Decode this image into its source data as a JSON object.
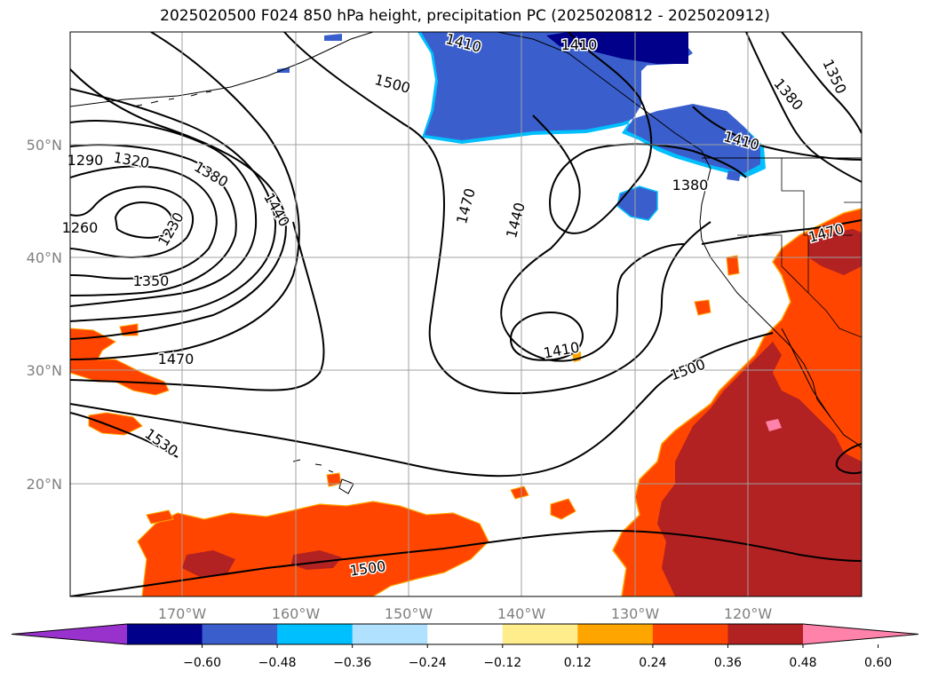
{
  "title": "2025020500 F024 850 hPa height, precipitation PC (2025020812 - 2025020912)",
  "lat_labels": [
    "50°N",
    "40°N",
    "30°N",
    "20°N"
  ],
  "lon_labels": [
    "170°W",
    "160°W",
    "150°W",
    "140°W",
    "130°W",
    "120°W"
  ],
  "contour_labels": [
    "1410",
    "1500",
    "1410",
    "1350",
    "1380",
    "1410",
    "1290",
    "1320",
    "1380",
    "1440",
    "1470",
    "1440",
    "1260",
    "1230",
    "1350",
    "1470",
    "1410",
    "1500",
    "1530",
    "1500",
    "1380",
    "1470"
  ],
  "colorbar": {
    "ticks": [
      "−0.60",
      "−0.48",
      "−0.36",
      "−0.24",
      "−0.12",
      "0.12",
      "0.24",
      "0.36",
      "0.48",
      "0.60"
    ],
    "colors": [
      "#9932cc",
      "#00008b",
      "#3a5fcd",
      "#00bfff",
      "#b0e2ff",
      "#ffffff",
      "#ffec8b",
      "#ffa500",
      "#ff4500",
      "#b22222",
      "#ff82ab"
    ]
  },
  "fill_colors": {
    "neg_strong": "#00008b",
    "neg_mid": "#3a5fcd",
    "neg_light": "#00bfff",
    "pos_low": "#ffec8b",
    "pos_mid": "#ffa500",
    "pos_high": "#ff4500",
    "pos_very": "#b22222",
    "pos_max": "#ff82ab"
  }
}
